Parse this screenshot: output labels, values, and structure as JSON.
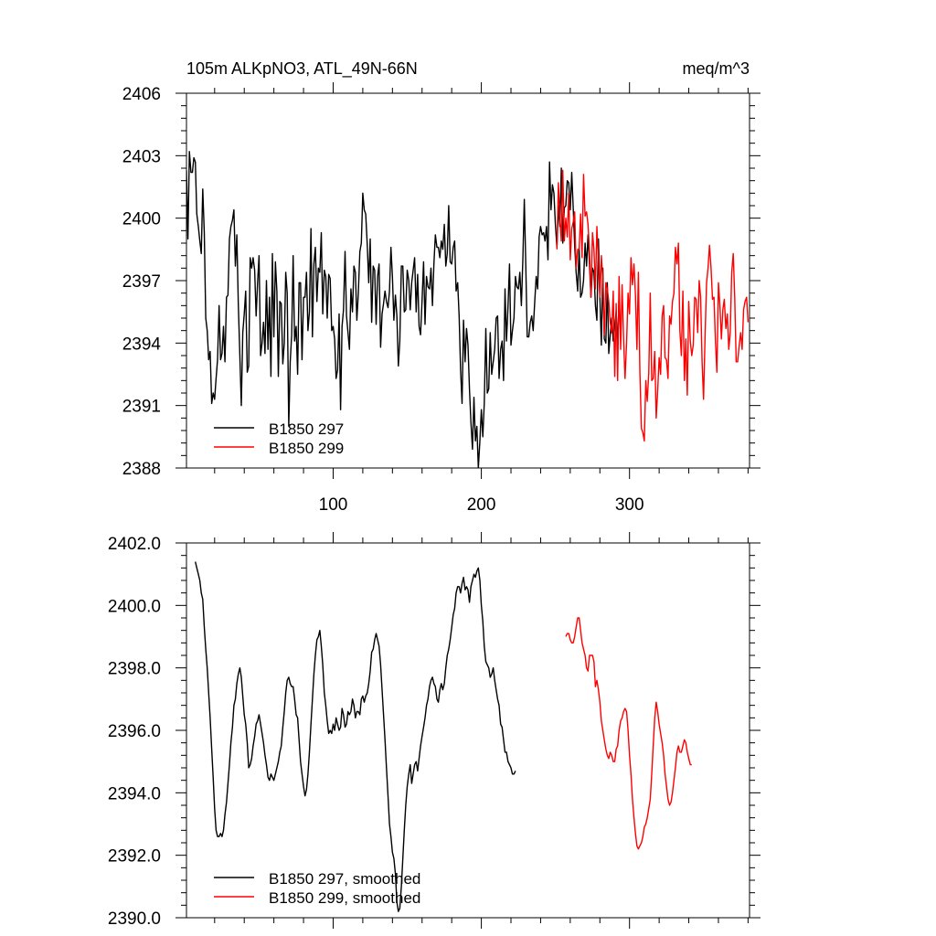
{
  "chart_data": [
    {
      "type": "line",
      "title_left": "105m ALKpNO3, ATL_49N-66N",
      "title_right": "meq/m^3",
      "xlim": [
        1,
        381
      ],
      "ylim": [
        2388,
        2406
      ],
      "xticks": [
        100,
        200,
        300
      ],
      "yticks": [
        2388,
        2391,
        2394,
        2397,
        2400,
        2403,
        2406
      ],
      "ytick_labels": [
        "2388",
        "2391",
        "2394",
        "2397",
        "2400",
        "2403",
        "2406"
      ],
      "legend": [
        "B1850 297",
        "B1850 299"
      ],
      "legend_position": "lower-left",
      "series": [
        {
          "name": "B1850 297",
          "color": "#000000",
          "x_start": 1,
          "values": [
            2402.3,
            2399.0,
            2403.2,
            2402.2,
            2402.2,
            2402.9,
            2402.7,
            2400.2,
            2399.6,
            2398.9,
            2398.3,
            2401.4,
            2399.3,
            2395.2,
            2394.6,
            2393.2,
            2393.6,
            2391.1,
            2391.6,
            2391.3,
            2392.3,
            2393.2,
            2395.8,
            2393.2,
            2393.5,
            2394.8,
            2393.1,
            2396.2,
            2396.3,
            2399.0,
            2399.6,
            2399.9,
            2400.4,
            2397.7,
            2399.2,
            2395.9,
            2393.4,
            2391.0,
            2394.5,
            2395.4,
            2396.5,
            2392.6,
            2392.9,
            2398.1,
            2397.6,
            2398.1,
            2397.5,
            2395.3,
            2396.9,
            2398.2,
            2393.4,
            2394.0,
            2395.0,
            2393.5,
            2397.0,
            2393.7,
            2396.2,
            2392.4,
            2398.3,
            2394.3,
            2397.9,
            2396.5,
            2392.4,
            2396.0,
            2395.9,
            2393.0,
            2394.0,
            2397.4,
            2396.4,
            2390.0,
            2393.1,
            2394.4,
            2398.2,
            2394.1,
            2394.8,
            2392.5,
            2396.9,
            2396.9,
            2393.2,
            2396.2,
            2396.2,
            2397.4,
            2394.6,
            2395.5,
            2399.5,
            2394.3,
            2397.8,
            2398.6,
            2396.0,
            2397.6,
            2397.4,
            2399.3,
            2395.4,
            2397.5,
            2397.2,
            2395.2,
            2397.3,
            2397.1,
            2394.6,
            2394.8,
            2394.2,
            2392.3,
            2392.7,
            2395.4,
            2390.8,
            2394.8,
            2395.6,
            2398.4,
            2395.3,
            2394.5,
            2393.7,
            2396.6,
            2395.5,
            2397.7,
            2397.4,
            2395.1,
            2396.4,
            2398.4,
            2398.8,
            2401.2,
            2400.4,
            2400.2,
            2398.7,
            2396.9,
            2399.0,
            2395.0,
            2397.7,
            2397.5,
            2394.9,
            2397.2,
            2397.8,
            2393.8,
            2395.4,
            2395.9,
            2396.5,
            2396.0,
            2395.7,
            2396.5,
            2398.6,
            2397.2,
            2395.1,
            2396.3,
            2395.3,
            2392.9,
            2394.1,
            2397.7,
            2397.7,
            2395.5,
            2395.6,
            2397.5,
            2397.0,
            2395.6,
            2396.9,
            2397.5,
            2398.1,
            2395.5,
            2397.3,
            2394.8,
            2394.4,
            2396.0,
            2397.9,
            2394.9,
            2397.2,
            2396.7,
            2396.6,
            2397.6,
            2395.8,
            2397.8,
            2399.2,
            2398.6,
            2398.6,
            2398.1,
            2398.9,
            2398.5,
            2399.7,
            2397.7,
            2398.3,
            2400.6,
            2397.9,
            2397.8,
            2398.6,
            2398.9,
            2396.5,
            2396.9,
            2395.3,
            2392.7,
            2391.1,
            2395.1,
            2393.1,
            2394.7,
            2393.9,
            2391.8,
            2390.2,
            2388.9,
            2391.4,
            2389.3,
            2390.0,
            2388.0,
            2389.3,
            2390.8,
            2389.5,
            2391.1,
            2394.7,
            2391.6,
            2391.8,
            2394.5,
            2392.5,
            2393.1,
            2393.7,
            2395.2,
            2395.3,
            2392.3,
            2393.7,
            2394.1,
            2392.2,
            2396.6,
            2394.1,
            2395.8,
            2397.8,
            2393.9,
            2394.6,
            2395.2,
            2397.2,
            2396.7,
            2396.6,
            2397.4,
            2395.8,
            2398.0,
            2400.9,
            2397.8,
            2394.3,
            2394.3,
            2395.0,
            2395.3,
            2394.6,
            2395.9,
            2397.2,
            2396.6,
            2399.1,
            2399.6,
            2399.2,
            2399.3,
            2398.9,
            2399.6,
            2398.0,
            2402.7,
            2400.4,
            2401.6,
            2401.2,
            2399.7,
            2398.6,
            2400.6,
            2399.6,
            2402.4,
            2398.8,
            2400.5,
            2400.6,
            2401.8,
            2401.7,
            2400.4,
            2402.2,
            2400.5,
            2398.7,
            2397.4,
            2396.5,
            2398.6,
            2396.2,
            2396.4,
            2397.0,
            2398.8,
            2397.7,
            2399.2,
            2397.8,
            2396.2,
            2397.6,
            2397.4,
            2395.8,
            2395.1,
            2399.0,
            2396.2,
            2393.9,
            2397.6,
            2394.2,
            2394.0,
            2396.9,
            2393.5,
            2394.4,
            2395.2,
            2394.1,
            2394.8,
            2395.5,
            2393.8,
            2396.3,
            2394.3
          ]
        },
        {
          "name": "B1850 299",
          "color": "#ff0000",
          "x_start": 251,
          "values": [
            2398.5,
            2401.7,
            2400.0,
            2398.9,
            2402.3,
            2398.9,
            2400.0,
            2399.1,
            2401.2,
            2398.0,
            2399.5,
            2399.8,
            2400.3,
            2397.6,
            2398.5,
            2398.5,
            2400.2,
            2398.1,
            2402.1,
            2400.1,
            2400.3,
            2399.7,
            2398.4,
            2396.2,
            2399.3,
            2398.5,
            2396.6,
            2399.6,
            2397.9,
            2396.2,
            2398.2,
            2397.0,
            2394.4,
            2396.9,
            2396.6,
            2396.0,
            2395.0,
            2394.5,
            2396.5,
            2392.4,
            2395.9,
            2392.2,
            2397.2,
            2393.7,
            2396.8,
            2394.2,
            2392.3,
            2394.0,
            2396.4,
            2395.4,
            2398.1,
            2396.8,
            2397.8,
            2396.3,
            2393.7,
            2397.4,
            2392.7,
            2389.9,
            2389.7,
            2389.3,
            2392.2,
            2391.2,
            2392.6,
            2396.4,
            2392.2,
            2392.3,
            2393.6,
            2390.4,
            2391.7,
            2393.3,
            2392.5,
            2395.3,
            2395.8,
            2393.3,
            2393.2,
            2392.3,
            2395.3,
            2394.9,
            2396.0,
            2396.4,
            2398.6,
            2397.8,
            2398.8,
            2394.6,
            2393.4,
            2396.5,
            2392.2,
            2394.2,
            2391.5,
            2396.0,
            2394.1,
            2393.4,
            2393.9,
            2396.2,
            2396.1,
            2394.5,
            2397.0,
            2396.2,
            2393.1,
            2391.3,
            2394.4,
            2396.9,
            2397.6,
            2398.7,
            2397.6,
            2396.1,
            2396.2,
            2394.1,
            2392.6,
            2396.9,
            2395.8,
            2394.2,
            2395.6,
            2396.1,
            2394.7,
            2395.4,
            2393.7,
            2394.5,
            2397.4,
            2398.3,
            2396.2,
            2393.1,
            2393.1,
            2393.9,
            2394.5,
            2393.7,
            2395.6,
            2396.0,
            2396.2,
            2395.0
          ]
        }
      ]
    },
    {
      "type": "line",
      "xlim": [
        1,
        381
      ],
      "ylim": [
        2390,
        2402
      ],
      "xticks": [
        100,
        200,
        300
      ],
      "yticks": [
        2390,
        2392,
        2394,
        2396,
        2398,
        2400,
        2402
      ],
      "ytick_labels": [
        "2390.0",
        "2392.0",
        "2394.0",
        "2396.0",
        "2398.0",
        "2400.0",
        "2402.0"
      ],
      "legend": [
        "B1850 297, smoothed",
        "B1850 299, smoothed"
      ],
      "legend_position": "lower-left",
      "series": [
        {
          "name": "B1850 297, smoothed",
          "color": "#000000",
          "x_start": 7,
          "values": [
            2401.4,
            2401.2,
            2401.0,
            2400.8,
            2400.4,
            2400.2,
            2399.3,
            2398.6,
            2398.0,
            2397.2,
            2396.4,
            2395.4,
            2394.5,
            2393.5,
            2392.8,
            2392.6,
            2392.6,
            2392.7,
            2392.6,
            2392.8,
            2393.3,
            2393.7,
            2394.3,
            2394.9,
            2395.6,
            2396.1,
            2396.8,
            2397.0,
            2397.5,
            2397.8,
            2398.0,
            2397.7,
            2397.1,
            2396.5,
            2396.2,
            2395.6,
            2394.8,
            2394.9,
            2395.1,
            2395.5,
            2395.8,
            2396.2,
            2396.3,
            2396.5,
            2396.2,
            2395.9,
            2395.6,
            2395.2,
            2394.9,
            2394.5,
            2394.4,
            2394.6,
            2394.5,
            2394.4,
            2394.6,
            2394.8,
            2395.0,
            2395.3,
            2395.5,
            2396.1,
            2396.6,
            2397.2,
            2397.6,
            2397.7,
            2397.5,
            2397.4,
            2397.4,
            2397.0,
            2396.5,
            2396.4,
            2395.7,
            2395.0,
            2394.6,
            2394.2,
            2393.9,
            2394.1,
            2394.6,
            2395.3,
            2396.2,
            2397.0,
            2397.8,
            2398.4,
            2398.9,
            2399.0,
            2399.2,
            2398.7,
            2398.1,
            2397.2,
            2396.8,
            2396.3,
            2395.9,
            2396.0,
            2395.9,
            2396.2,
            2396.0,
            2396.4,
            2396.2,
            2396.0,
            2396.1,
            2396.7,
            2396.5,
            2396.1,
            2396.2,
            2396.6,
            2396.5,
            2396.6,
            2397.0,
            2396.8,
            2396.4,
            2396.6,
            2396.6,
            2396.5,
            2397.0,
            2397.1,
            2396.9,
            2397.1,
            2397.2,
            2397.5,
            2397.9,
            2398.5,
            2398.6,
            2398.9,
            2399.1,
            2398.9,
            2398.7,
            2398.1,
            2397.3,
            2396.5,
            2395.7,
            2394.8,
            2393.9,
            2393.0,
            2392.6,
            2392.1,
            2391.9,
            2391.4,
            2390.5,
            2390.2,
            2390.3,
            2391.0,
            2391.9,
            2392.8,
            2393.6,
            2394.2,
            2394.6,
            2394.9,
            2394.3,
            2394.6,
            2394.9,
            2395.0,
            2394.7,
            2395.1,
            2395.5,
            2395.8,
            2396.1,
            2396.4,
            2396.8,
            2397.0,
            2397.4,
            2397.6,
            2397.7,
            2397.5,
            2397.4,
            2397.0,
            2396.9,
            2397.3,
            2397.5,
            2397.3,
            2397.5,
            2398.0,
            2398.4,
            2398.6,
            2398.9,
            2399.3,
            2399.7,
            2399.9,
            2400.4,
            2400.6,
            2400.6,
            2400.4,
            2400.7,
            2400.9,
            2400.5,
            2400.6,
            2400.5,
            2400.1,
            2400.6,
            2400.8,
            2401.0,
            2400.9,
            2401.1,
            2401.2,
            2400.8,
            2400.0,
            2399.5,
            2398.7,
            2398.2,
            2398.1,
            2398.0,
            2397.7,
            2397.8,
            2398.0,
            2397.6,
            2397.3,
            2397.0,
            2396.8,
            2396.2,
            2396.1,
            2395.7,
            2395.3,
            2395.3,
            2395.0,
            2394.9,
            2394.8,
            2394.6,
            2394.6,
            2394.7
          ]
        },
        {
          "name": "B1850 299, smoothed",
          "color": "#ff0000",
          "x_start": 257,
          "values": [
            2399.0,
            2399.1,
            2399.1,
            2398.9,
            2398.8,
            2398.8,
            2399.0,
            2399.3,
            2399.6,
            2399.6,
            2399.2,
            2398.8,
            2398.6,
            2398.4,
            2398.0,
            2397.9,
            2398.4,
            2398.4,
            2398.4,
            2398.2,
            2397.4,
            2397.6,
            2397.3,
            2396.9,
            2396.3,
            2396.0,
            2395.7,
            2395.4,
            2395.2,
            2395.1,
            2395.3,
            2395.2,
            2395.0,
            2395.0,
            2395.4,
            2395.5,
            2396.0,
            2396.3,
            2396.4,
            2396.6,
            2396.7,
            2396.6,
            2396.0,
            2395.2,
            2394.6,
            2393.8,
            2393.2,
            2392.7,
            2392.3,
            2392.2,
            2392.3,
            2392.4,
            2392.6,
            2392.9,
            2393.0,
            2393.2,
            2393.5,
            2393.8,
            2394.6,
            2395.5,
            2396.4,
            2396.9,
            2396.6,
            2396.2,
            2395.9,
            2395.6,
            2395.2,
            2394.6,
            2394.2,
            2393.8,
            2393.6,
            2393.7,
            2394.0,
            2394.4,
            2394.8,
            2395.3,
            2395.5,
            2395.3,
            2395.3,
            2395.5,
            2395.7,
            2395.6,
            2395.3,
            2395.1,
            2394.9,
            2394.9
          ]
        }
      ]
    }
  ]
}
